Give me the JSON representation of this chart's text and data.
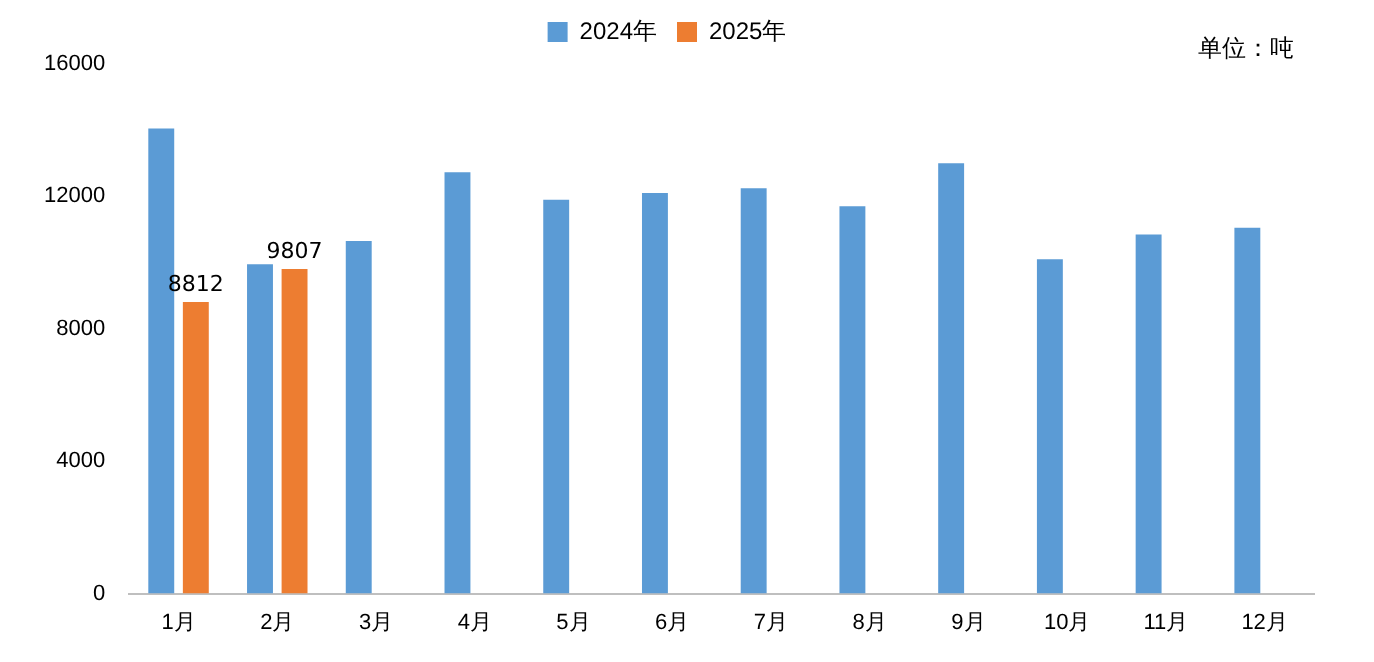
{
  "chart_data": {
    "type": "bar",
    "categories": [
      "1月",
      "2月",
      "3月",
      "4月",
      "5月",
      "6月",
      "7月",
      "8月",
      "9月",
      "10月",
      "11月",
      "12月"
    ],
    "series": [
      {
        "name": "2024年",
        "color": "#5b9bd5",
        "values": [
          14050,
          9950,
          10650,
          12730,
          11900,
          12100,
          12250,
          11700,
          13000,
          10100,
          10850,
          11050
        ]
      },
      {
        "name": "2025年",
        "color": "#ed7d31",
        "values": [
          8812,
          9807,
          null,
          null,
          null,
          null,
          null,
          null,
          null,
          null,
          null,
          null
        ],
        "value_labels": [
          "8812",
          "9807",
          null,
          null,
          null,
          null,
          null,
          null,
          null,
          null,
          null,
          null
        ]
      }
    ],
    "ylim": [
      0,
      16000
    ],
    "yticks": [
      0,
      4000,
      8000,
      12000,
      16000
    ],
    "grid": false,
    "legend": "top",
    "annotations": [
      "单位：吨"
    ]
  }
}
